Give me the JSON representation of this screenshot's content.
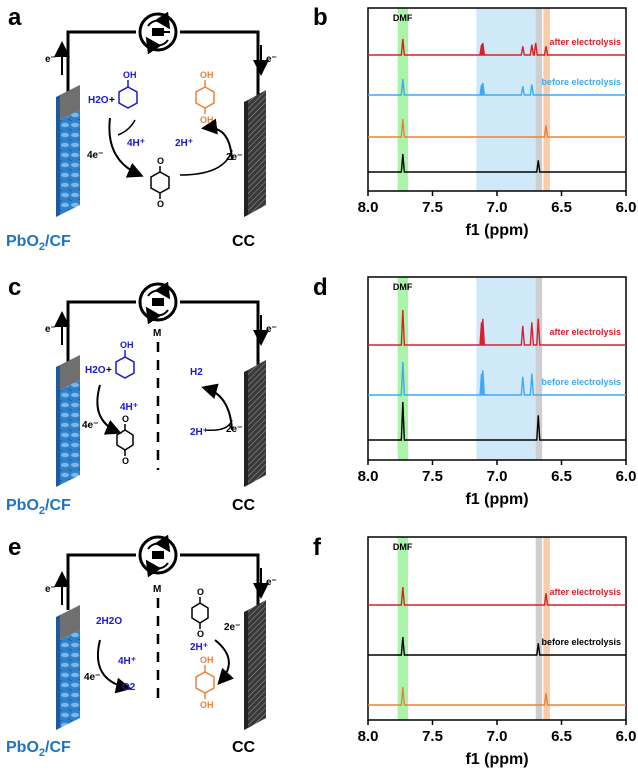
{
  "panel_labels": {
    "a": "a",
    "b": "b",
    "c": "c",
    "d": "d",
    "e": "e",
    "f": "f"
  },
  "electrodes": {
    "anode": "PbO2/CF",
    "anode_main": "PbO",
    "anode_sub": "2",
    "anode_tail": "/CF",
    "cathode": "CC"
  },
  "electron": "e⁻",
  "membrane": "M",
  "schemes": {
    "a": {
      "water": "H2O",
      "plus": "+",
      "left_e": "4e⁻",
      "left_h": "4H⁺",
      "right_h": "2H⁺",
      "right_e": "2e⁻"
    },
    "c": {
      "water": "H2O",
      "plus": "+",
      "left_e": "4e⁻",
      "left_h": "4H⁺",
      "right_h": "2H⁺",
      "right_e": "2e⁻",
      "h2": "H2"
    },
    "e": {
      "water": "2H2O",
      "left_e": "4e⁻",
      "left_h": "4H⁺",
      "o2": "O2",
      "right_h": "2H⁺",
      "right_e": "2e⁻"
    }
  },
  "chart_data": [
    {
      "type": "line",
      "panel": "b",
      "xlabel": "f1 (ppm)",
      "xlim": [
        8.0,
        6.0
      ],
      "ticks": [
        "8.0",
        "7.5",
        "7.0",
        "6.5",
        "6.0"
      ],
      "dmf_label": "DMF",
      "series": [
        {
          "name": "after electrolysis",
          "color": "#d9202a",
          "peaks": [
            7.73,
            7.12,
            7.11,
            6.8,
            6.73,
            6.7,
            6.62
          ]
        },
        {
          "name": "before electrolysis",
          "color": "#3fa9f5",
          "peaks": [
            7.73,
            7.12,
            7.11,
            6.8,
            6.73
          ]
        },
        {
          "name": "",
          "color": "#e8823a",
          "peaks": [
            7.73,
            6.62
          ]
        },
        {
          "name": "",
          "color": "#000000",
          "peaks": [
            7.73,
            6.68
          ]
        }
      ],
      "highlights": [
        {
          "from": 7.77,
          "to": 7.69,
          "color": "#8ef08e"
        },
        {
          "from": 7.16,
          "to": 6.7,
          "color": "#bfe1f7"
        },
        {
          "from": 6.7,
          "to": 6.65,
          "color": "#bdbdbd"
        },
        {
          "from": 6.64,
          "to": 6.59,
          "color": "#f7b98a"
        }
      ]
    },
    {
      "type": "line",
      "panel": "d",
      "xlabel": "f1 (ppm)",
      "xlim": [
        8.0,
        6.0
      ],
      "ticks": [
        "8.0",
        "7.5",
        "7.0",
        "6.5",
        "6.0"
      ],
      "dmf_label": "DMF",
      "series": [
        {
          "name": "after electrolysis",
          "color": "#d9202a",
          "peaks": [
            7.73,
            7.12,
            7.11,
            6.8,
            6.73,
            6.68
          ]
        },
        {
          "name": "before electrolysis",
          "color": "#3fa9f5",
          "peaks": [
            7.73,
            7.12,
            7.11,
            6.8,
            6.73
          ]
        },
        {
          "name": "",
          "color": "#000000",
          "peaks": [
            7.73,
            6.68
          ]
        }
      ],
      "highlights": [
        {
          "from": 7.77,
          "to": 7.69,
          "color": "#8ef08e"
        },
        {
          "from": 7.16,
          "to": 6.7,
          "color": "#bfe1f7"
        },
        {
          "from": 6.7,
          "to": 6.65,
          "color": "#bdbdbd"
        }
      ]
    },
    {
      "type": "line",
      "panel": "f",
      "xlabel": "f1 (ppm)",
      "xlim": [
        8.0,
        6.0
      ],
      "ticks": [
        "8.0",
        "7.5",
        "7.0",
        "6.5",
        "6.0"
      ],
      "dmf_label": "DMF",
      "series": [
        {
          "name": "after electrolysis",
          "color": "#d9202a",
          "peaks": [
            7.73,
            6.62
          ]
        },
        {
          "name": "before electrolysis",
          "color": "#000000",
          "peaks": [
            7.73,
            6.68
          ]
        },
        {
          "name": "",
          "color": "#e8823a",
          "peaks": [
            7.73,
            6.62
          ]
        }
      ],
      "highlights": [
        {
          "from": 7.77,
          "to": 7.69,
          "color": "#8ef08e"
        },
        {
          "from": 6.7,
          "to": 6.65,
          "color": "#bdbdbd"
        },
        {
          "from": 6.64,
          "to": 6.59,
          "color": "#f7b98a"
        }
      ]
    }
  ]
}
